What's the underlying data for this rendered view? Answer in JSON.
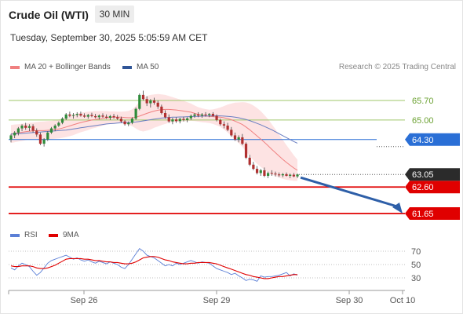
{
  "header": {
    "title": "Crude Oil (WTI)",
    "timeframe": "30 MIN",
    "datetime": "Tuesday, September 30, 2025 5:05:59 AM CET",
    "copyright": "Research © 2025 Trading Central"
  },
  "legend": {
    "bollinger": {
      "label": "MA 20 + Bollinger Bands",
      "color": "#f08080"
    },
    "ma50": {
      "label": "MA 50",
      "color": "#2f5597"
    }
  },
  "rsi_legend": {
    "rsi": {
      "label": "RSI",
      "color": "#5b7fd6"
    },
    "ma9": {
      "label": "9MA",
      "color": "#e00000"
    }
  },
  "levels": [
    {
      "value": 65.7,
      "label": "65.70",
      "kind": "resistance",
      "color": "#9fc76a"
    },
    {
      "value": 65.0,
      "label": "65.00",
      "kind": "resistance",
      "color": "#9fc76a"
    },
    {
      "value": 64.3,
      "label": "64.30",
      "kind": "pivot",
      "color": "#2a6fd6"
    },
    {
      "value": 62.6,
      "label": "62.60",
      "kind": "support",
      "color": "#e00000"
    },
    {
      "value": 61.65,
      "label": "61.65",
      "kind": "support",
      "color": "#e00000"
    }
  ],
  "last_price": {
    "value": 63.05,
    "label": "63.05",
    "color": "#2b2b2b"
  },
  "chart_data": {
    "type": "candlestick",
    "x_ticks": [
      "Sep 26",
      "Sep 29",
      "Sep 30",
      "Oct 10"
    ],
    "rsi_ticks": [
      "70",
      "50",
      "30"
    ],
    "ylim": [
      61.2,
      66.2
    ],
    "candles": [
      [
        64.3,
        64.5,
        64.2,
        64.45
      ],
      [
        64.45,
        64.6,
        64.35,
        64.55
      ],
      [
        64.55,
        64.75,
        64.45,
        64.7
      ],
      [
        64.7,
        64.85,
        64.6,
        64.8
      ],
      [
        64.8,
        64.9,
        64.65,
        64.72
      ],
      [
        64.72,
        64.85,
        64.6,
        64.78
      ],
      [
        64.78,
        64.85,
        64.55,
        64.62
      ],
      [
        64.62,
        64.7,
        64.4,
        64.48
      ],
      [
        64.48,
        64.55,
        64.1,
        64.15
      ],
      [
        64.15,
        64.35,
        64.05,
        64.3
      ],
      [
        64.3,
        64.6,
        64.25,
        64.55
      ],
      [
        64.55,
        64.75,
        64.5,
        64.7
      ],
      [
        64.7,
        64.85,
        64.6,
        64.8
      ],
      [
        64.8,
        64.95,
        64.75,
        64.9
      ],
      [
        64.9,
        65.1,
        64.85,
        65.05
      ],
      [
        65.05,
        65.25,
        65.0,
        65.2
      ],
      [
        65.2,
        65.3,
        65.1,
        65.15
      ],
      [
        65.15,
        65.25,
        65.05,
        65.18
      ],
      [
        65.18,
        65.28,
        65.1,
        65.22
      ],
      [
        65.22,
        65.3,
        65.12,
        65.16
      ],
      [
        65.16,
        65.24,
        65.08,
        65.12
      ],
      [
        65.12,
        65.22,
        65.05,
        65.18
      ],
      [
        65.18,
        65.26,
        65.1,
        65.14
      ],
      [
        65.14,
        65.22,
        65.06,
        65.1
      ],
      [
        65.1,
        65.2,
        65.02,
        65.16
      ],
      [
        65.16,
        65.24,
        65.08,
        65.12
      ],
      [
        65.12,
        65.2,
        65.04,
        65.08
      ],
      [
        65.08,
        65.18,
        65.0,
        65.14
      ],
      [
        65.14,
        65.22,
        65.05,
        65.1
      ],
      [
        65.1,
        65.18,
        65.0,
        65.05
      ],
      [
        65.05,
        65.12,
        64.9,
        64.95
      ],
      [
        64.95,
        65.0,
        64.8,
        64.85
      ],
      [
        64.85,
        64.95,
        64.78,
        64.9
      ],
      [
        64.9,
        65.1,
        64.85,
        65.05
      ],
      [
        65.05,
        65.45,
        65.0,
        65.4
      ],
      [
        65.4,
        65.95,
        65.35,
        65.9
      ],
      [
        65.9,
        66.05,
        65.7,
        65.75
      ],
      [
        65.75,
        65.85,
        65.5,
        65.6
      ],
      [
        65.6,
        65.75,
        65.45,
        65.7
      ],
      [
        65.7,
        65.8,
        65.55,
        65.62
      ],
      [
        65.62,
        65.7,
        65.4,
        65.48
      ],
      [
        65.48,
        65.55,
        65.2,
        65.25
      ],
      [
        65.25,
        65.35,
        65.05,
        65.1
      ],
      [
        65.1,
        65.2,
        64.9,
        64.95
      ],
      [
        64.95,
        65.08,
        64.85,
        65.02
      ],
      [
        65.02,
        65.1,
        64.9,
        64.96
      ],
      [
        64.96,
        65.08,
        64.88,
        65.04
      ],
      [
        65.04,
        65.12,
        64.95,
        65.0
      ],
      [
        65.0,
        65.1,
        64.92,
        65.06
      ],
      [
        65.06,
        65.2,
        65.0,
        65.15
      ],
      [
        65.15,
        65.25,
        65.08,
        65.2
      ],
      [
        65.2,
        65.28,
        65.1,
        65.16
      ],
      [
        65.16,
        65.25,
        65.08,
        65.2
      ],
      [
        65.2,
        65.28,
        65.12,
        65.18
      ],
      [
        65.18,
        65.25,
        65.1,
        65.22
      ],
      [
        65.22,
        65.28,
        65.12,
        65.15
      ],
      [
        65.15,
        65.2,
        64.95,
        65.0
      ],
      [
        65.0,
        65.05,
        64.8,
        64.85
      ],
      [
        64.85,
        64.95,
        64.7,
        64.8
      ],
      [
        64.8,
        64.9,
        64.6,
        64.65
      ],
      [
        64.65,
        64.75,
        64.4,
        64.45
      ],
      [
        64.45,
        64.55,
        64.25,
        64.3
      ],
      [
        64.3,
        64.45,
        64.2,
        64.38
      ],
      [
        64.38,
        64.5,
        64.1,
        64.15
      ],
      [
        64.15,
        64.2,
        63.6,
        63.65
      ],
      [
        63.65,
        63.75,
        63.35,
        63.4
      ],
      [
        63.4,
        63.5,
        63.2,
        63.25
      ],
      [
        63.25,
        63.35,
        63.05,
        63.1
      ],
      [
        63.1,
        63.25,
        63.0,
        63.2
      ],
      [
        63.2,
        63.3,
        62.95,
        63.0
      ],
      [
        63.0,
        63.15,
        62.92,
        63.1
      ],
      [
        63.1,
        63.2,
        63.0,
        63.08
      ],
      [
        63.08,
        63.15,
        62.98,
        63.05
      ],
      [
        63.05,
        63.12,
        62.96,
        63.02
      ],
      [
        63.02,
        63.1,
        62.95,
        63.06
      ],
      [
        63.06,
        63.12,
        62.98,
        63.0
      ],
      [
        63.0,
        63.08,
        62.92,
        63.04
      ],
      [
        63.04,
        63.1,
        62.95,
        62.98
      ],
      [
        62.98,
        63.08,
        62.92,
        63.05
      ]
    ],
    "ma20": [
      64.5,
      64.52,
      64.54,
      64.56,
      64.58,
      64.6,
      64.61,
      64.62,
      64.62,
      64.62,
      64.63,
      64.64,
      64.66,
      64.68,
      64.71,
      64.75,
      64.79,
      64.83,
      64.87,
      64.91,
      64.94,
      64.97,
      65.0,
      65.02,
      65.04,
      65.06,
      65.08,
      65.09,
      65.1,
      65.1,
      65.1,
      65.09,
      65.08,
      65.08,
      65.1,
      65.14,
      65.19,
      65.24,
      65.28,
      65.32,
      65.35,
      65.37,
      65.38,
      65.38,
      65.37,
      65.36,
      65.34,
      65.32,
      65.3,
      65.28,
      65.24,
      65.2,
      65.17,
      65.15,
      65.13,
      65.12,
      65.11,
      65.1,
      65.08,
      65.05,
      65.01,
      64.96,
      64.9,
      64.84,
      64.75,
      64.65,
      64.54,
      64.43,
      64.32,
      64.2,
      64.08,
      63.95,
      63.83,
      63.71,
      63.59,
      63.48,
      63.38,
      63.28,
      63.2
    ],
    "ma50": [
      64.5,
      64.5,
      64.51,
      64.52,
      64.53,
      64.54,
      64.55,
      64.56,
      64.57,
      64.58,
      64.59,
      64.6,
      64.61,
      64.62,
      64.63,
      64.64,
      64.66,
      64.68,
      64.7,
      64.72,
      64.74,
      64.76,
      64.78,
      64.8,
      64.82,
      64.84,
      64.86,
      64.87,
      64.88,
      64.89,
      64.9,
      64.91,
      64.91,
      64.92,
      64.93,
      64.95,
      64.97,
      64.99,
      65.01,
      65.03,
      65.05,
      65.07,
      65.08,
      65.09,
      65.1,
      65.1,
      65.11,
      65.11,
      65.12,
      65.12,
      65.13,
      65.13,
      65.14,
      65.14,
      65.15,
      65.15,
      65.15,
      65.15,
      65.14,
      65.13,
      65.12,
      65.1,
      65.08,
      65.05,
      65.02,
      64.98,
      64.93,
      64.88,
      64.83,
      64.77,
      64.71,
      64.65,
      64.58,
      64.51,
      64.44,
      64.37,
      64.3,
      64.23,
      64.17
    ],
    "band_width": [
      0.32,
      0.32,
      0.31,
      0.31,
      0.3,
      0.3,
      0.3,
      0.31,
      0.32,
      0.33,
      0.33,
      0.33,
      0.33,
      0.34,
      0.35,
      0.36,
      0.37,
      0.37,
      0.36,
      0.35,
      0.34,
      0.33,
      0.31,
      0.3,
      0.28,
      0.26,
      0.24,
      0.22,
      0.21,
      0.2,
      0.2,
      0.22,
      0.25,
      0.3,
      0.4,
      0.52,
      0.6,
      0.62,
      0.62,
      0.6,
      0.58,
      0.55,
      0.52,
      0.48,
      0.45,
      0.42,
      0.4,
      0.37,
      0.34,
      0.31,
      0.28,
      0.26,
      0.25,
      0.24,
      0.24,
      0.26,
      0.3,
      0.35,
      0.42,
      0.5,
      0.58,
      0.66,
      0.73,
      0.8,
      0.88,
      0.94,
      0.98,
      1.0,
      1.0,
      0.98,
      0.95,
      0.9,
      0.84,
      0.77,
      0.7,
      0.62,
      0.54,
      0.46,
      0.38
    ],
    "rsi": [
      45,
      42,
      48,
      52,
      50,
      47,
      40,
      34,
      38,
      45,
      52,
      56,
      58,
      60,
      62,
      64,
      61,
      58,
      60,
      57,
      55,
      57,
      54,
      52,
      55,
      53,
      51,
      54,
      52,
      50,
      46,
      44,
      50,
      58,
      66,
      74,
      70,
      64,
      62,
      60,
      56,
      52,
      48,
      50,
      48,
      52,
      50,
      52,
      54,
      56,
      54,
      52,
      54,
      53,
      52,
      48,
      44,
      42,
      40,
      38,
      35,
      37,
      33,
      30,
      26,
      28,
      27,
      25,
      33,
      31,
      32,
      32,
      33,
      34,
      36,
      38,
      33,
      36,
      34
    ],
    "rsi_ma": [
      48,
      47,
      47,
      48,
      48,
      48,
      47,
      45,
      44,
      44,
      45,
      47,
      49,
      52,
      55,
      58,
      59,
      59,
      59,
      59,
      58,
      58,
      57,
      56,
      56,
      55,
      54,
      54,
      53,
      53,
      52,
      51,
      51,
      52,
      54,
      57,
      60,
      61,
      62,
      62,
      61,
      59,
      57,
      56,
      54,
      53,
      52,
      51,
      51,
      52,
      52,
      53,
      53,
      53,
      53,
      52,
      51,
      49,
      47,
      45,
      43,
      41,
      39,
      37,
      35,
      34,
      32,
      31,
      30,
      29,
      29,
      30,
      31,
      32,
      32,
      33,
      34,
      35,
      35
    ]
  }
}
